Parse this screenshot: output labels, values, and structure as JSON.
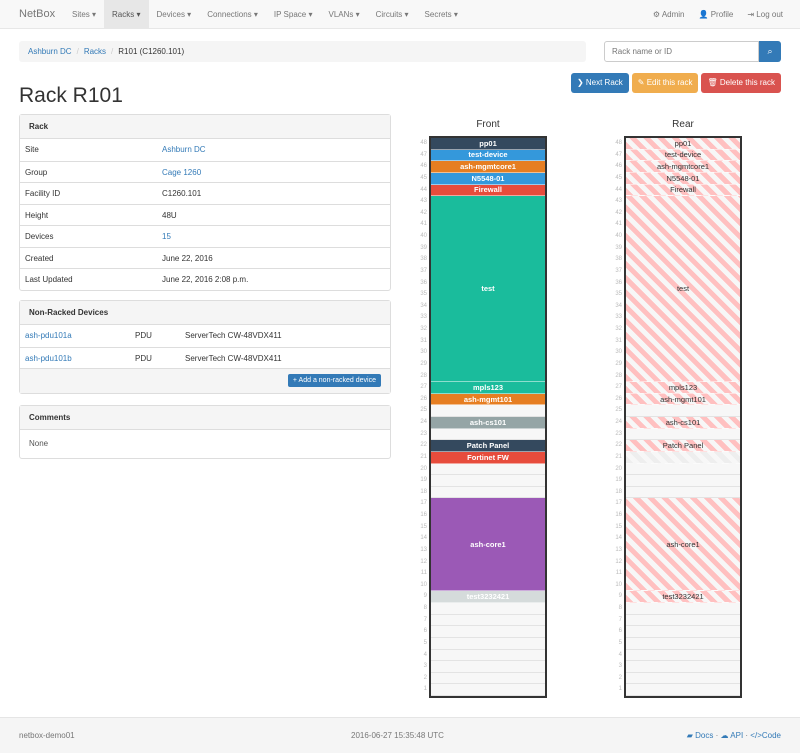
{
  "nav": {
    "brand": "NetBox",
    "items": [
      "Sites ▾",
      "Racks ▾",
      "Devices ▾",
      "Connections ▾",
      "IP Space ▾",
      "VLANs ▾",
      "Circuits ▾",
      "Secrets ▾"
    ],
    "active": 1,
    "right": [
      "⚙ Admin",
      "👤 Profile",
      "⇥ Log out"
    ]
  },
  "breadcrumb": [
    "Ashburn DC",
    "Racks",
    "R101 (C1260.101)"
  ],
  "search": {
    "placeholder": "Rack name or ID",
    "icon": "search-icon"
  },
  "buttons": {
    "next": "❯ Next Rack",
    "edit": "✎ Edit this rack",
    "delete": "🗑 Delete this rack"
  },
  "colors": {
    "primary": "#337ab7",
    "warning": "#f0ad4e",
    "danger": "#d9534f"
  },
  "title": "Rack R101",
  "rack_panel": {
    "title": "Rack",
    "rows": [
      {
        "k": "Site",
        "v": "Ashburn DC",
        "link": true
      },
      {
        "k": "Group",
        "v": "Cage 1260",
        "link": true
      },
      {
        "k": "Facility ID",
        "v": "C1260.101"
      },
      {
        "k": "Height",
        "v": "48U"
      },
      {
        "k": "Devices",
        "v": "15",
        "link": true
      },
      {
        "k": "Created",
        "v": "June 22, 2016"
      },
      {
        "k": "Last Updated",
        "v": "June 22, 2016 2:08 p.m."
      }
    ]
  },
  "nonracked": {
    "title": "Non-Racked Devices",
    "rows": [
      {
        "name": "ash-pdu101a",
        "role": "PDU",
        "type": "ServerTech CW-48VDX411"
      },
      {
        "name": "ash-pdu101b",
        "role": "PDU",
        "type": "ServerTech CW-48VDX411"
      }
    ],
    "add": "+ Add a non-racked device"
  },
  "comments": {
    "title": "Comments",
    "body": "None"
  },
  "rack": {
    "front_label": "Front",
    "rear_label": "Rear",
    "units": 48,
    "devices": [
      {
        "name": "pp01",
        "top": 48,
        "size": 1,
        "color": "#34495e"
      },
      {
        "name": "test-device",
        "top": 47,
        "size": 1,
        "color": "#3498db"
      },
      {
        "name": "ash-mgmtcore1",
        "top": 46,
        "size": 1,
        "color": "#e67e22"
      },
      {
        "name": "N5548-01",
        "top": 45,
        "size": 1,
        "color": "#3498db"
      },
      {
        "name": "Firewall",
        "top": 44,
        "size": 1,
        "color": "#e74c3c"
      },
      {
        "name": "test",
        "top": 43,
        "size": 16,
        "color": "#1abc9c"
      },
      {
        "name": "mpls123",
        "top": 27,
        "size": 1,
        "color": "#1abc9c"
      },
      {
        "name": "ash-mgmt101",
        "top": 26,
        "size": 1,
        "color": "#e67e22"
      },
      {
        "name": "ash-cs101",
        "top": 24,
        "size": 1,
        "color": "#95a5a6"
      },
      {
        "name": "Patch Panel",
        "top": 22,
        "size": 1,
        "color": "#34495e"
      },
      {
        "name": "Fortinet FW",
        "top": 21,
        "size": 1,
        "color": "#e74c3c",
        "rear_blocked": true
      },
      {
        "name": "ash-core1",
        "top": 17,
        "size": 8,
        "color": "#9b59b6"
      },
      {
        "name": "test3232421",
        "top": 9,
        "size": 1,
        "color": "#d5dbdb"
      }
    ]
  },
  "footer": {
    "host": "netbox-demo01",
    "time": "2016-06-27 15:35:48 UTC",
    "docs": "Docs",
    "api": "API",
    "code": "Code"
  }
}
